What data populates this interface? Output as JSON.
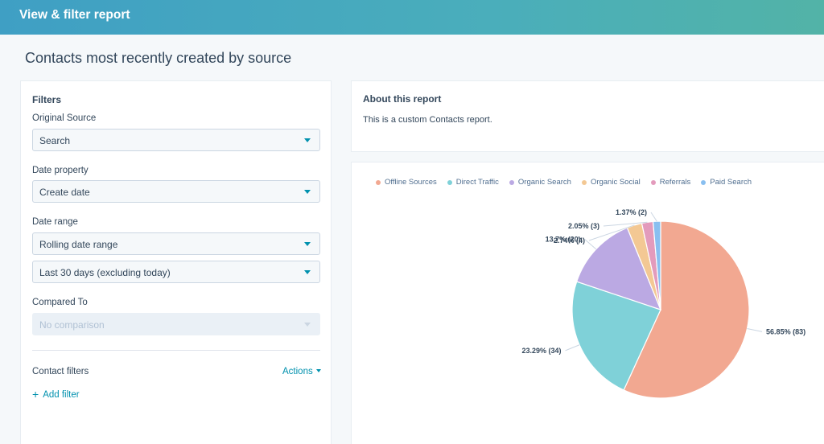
{
  "header": {
    "title": "View & filter report"
  },
  "page": {
    "title": "Contacts most recently created by source"
  },
  "filters": {
    "heading": "Filters",
    "original_source_label": "Original Source",
    "original_source_value": "Search",
    "date_property_label": "Date property",
    "date_property_value": "Create date",
    "date_range_label": "Date range",
    "date_range_value": "Rolling date range",
    "date_range_period": "Last 30 days (excluding today)",
    "compared_to_label": "Compared To",
    "compared_to_value": "No comparison",
    "contact_filters_label": "Contact filters",
    "actions_label": "Actions",
    "add_filter_label": "Add filter"
  },
  "about": {
    "title": "About this report",
    "text": "This is a custom Contacts report."
  },
  "chart_data": {
    "type": "pie",
    "slices": [
      {
        "name": "Offline Sources",
        "value": 83,
        "percent": 56.85,
        "label": "56.85% (83)",
        "color": "#f2a891"
      },
      {
        "name": "Direct Traffic",
        "value": 34,
        "percent": 23.29,
        "label": "23.29% (34)",
        "color": "#7fd1d8"
      },
      {
        "name": "Organic Search",
        "value": 20,
        "percent": 13.7,
        "label": "13.7% (20)",
        "color": "#bba9e3"
      },
      {
        "name": "Organic Social",
        "value": 4,
        "percent": 2.74,
        "label": "2.74% (4)",
        "color": "#f3c894"
      },
      {
        "name": "Referrals",
        "value": 3,
        "percent": 2.05,
        "label": "2.05% (3)",
        "color": "#e39bbc"
      },
      {
        "name": "Paid Search",
        "value": 2,
        "percent": 1.37,
        "label": "1.37% (2)",
        "color": "#89bff0"
      }
    ],
    "legend_position": "top-left"
  }
}
